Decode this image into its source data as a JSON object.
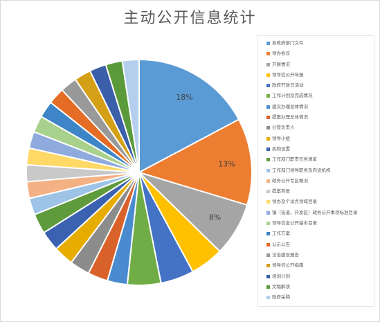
{
  "chart_data": {
    "type": "pie",
    "title": "主动公开信息统计",
    "legend_position": "right",
    "slices": [
      {
        "label": "各政府部门文件",
        "value": 18,
        "data_label": "18%",
        "color": "#5b9bd5"
      },
      {
        "label": "领办会议",
        "value": 13,
        "data_label": "13%",
        "color": "#ed7d31"
      },
      {
        "label": "开展情况",
        "value": 8,
        "data_label": "8%",
        "color": "#a5a5a5"
      },
      {
        "label": "领导信公开年报",
        "value": 5,
        "data_label": "",
        "color": "#ffc000"
      },
      {
        "label": "政府开放日活动",
        "value": 5,
        "data_label": "",
        "color": "#4472c4"
      },
      {
        "label": "工作计划及完成情况",
        "value": 5,
        "data_label": "",
        "color": "#70ad47"
      },
      {
        "label": "建议办理总体情况",
        "value": 3,
        "data_label": "",
        "color": "#4a8bd0"
      },
      {
        "label": "提案办理总体情况",
        "value": 3,
        "data_label": "",
        "color": "#d9622b"
      },
      {
        "label": "分管负责人",
        "value": 3,
        "data_label": "",
        "color": "#8c8c8c"
      },
      {
        "label": "领导小组",
        "value": 3,
        "data_label": "",
        "color": "#e6ac00"
      },
      {
        "label": "机构设置",
        "value": 3,
        "data_label": "",
        "color": "#3a62b0"
      },
      {
        "label": "工作部门职责任务清单",
        "value": 3,
        "data_label": "",
        "color": "#5f9a3c"
      },
      {
        "label": "工作部门领导职务及内设机构",
        "value": 2.5,
        "data_label": "",
        "color": "#9dc3e6"
      },
      {
        "label": "政务公开专区概况",
        "value": 2.5,
        "data_label": "",
        "color": "#f4b183"
      },
      {
        "label": "提案答复",
        "value": 2.5,
        "data_label": "",
        "color": "#c9c9c9"
      },
      {
        "label": "领办及个试点领域目录",
        "value": 2.5,
        "data_label": "",
        "color": "#ffd966"
      },
      {
        "label": "镇（街道、开发区）政务公开事项标准目录",
        "value": 2.5,
        "data_label": "",
        "color": "#8faadc"
      },
      {
        "label": "领导信息公开基本目录",
        "value": 2.5,
        "data_label": "",
        "color": "#a9d18e"
      },
      {
        "label": "工作方案",
        "value": 2.5,
        "data_label": "",
        "color": "#3d85c6"
      },
      {
        "label": "公示公告",
        "value": 2.5,
        "data_label": "",
        "color": "#e46c24"
      },
      {
        "label": "法治建设报告",
        "value": 2.5,
        "data_label": "",
        "color": "#999999"
      },
      {
        "label": "领导信公开指南",
        "value": 2.5,
        "data_label": "",
        "color": "#d4a017"
      },
      {
        "label": "培训计划",
        "value": 2.5,
        "data_label": "",
        "color": "#3b5fa8"
      },
      {
        "label": "文稿解读",
        "value": 2.5,
        "data_label": "",
        "color": "#5b9a3a"
      },
      {
        "label": "政府采购",
        "value": 2.5,
        "data_label": "",
        "color": "#b4cfee"
      }
    ]
  }
}
